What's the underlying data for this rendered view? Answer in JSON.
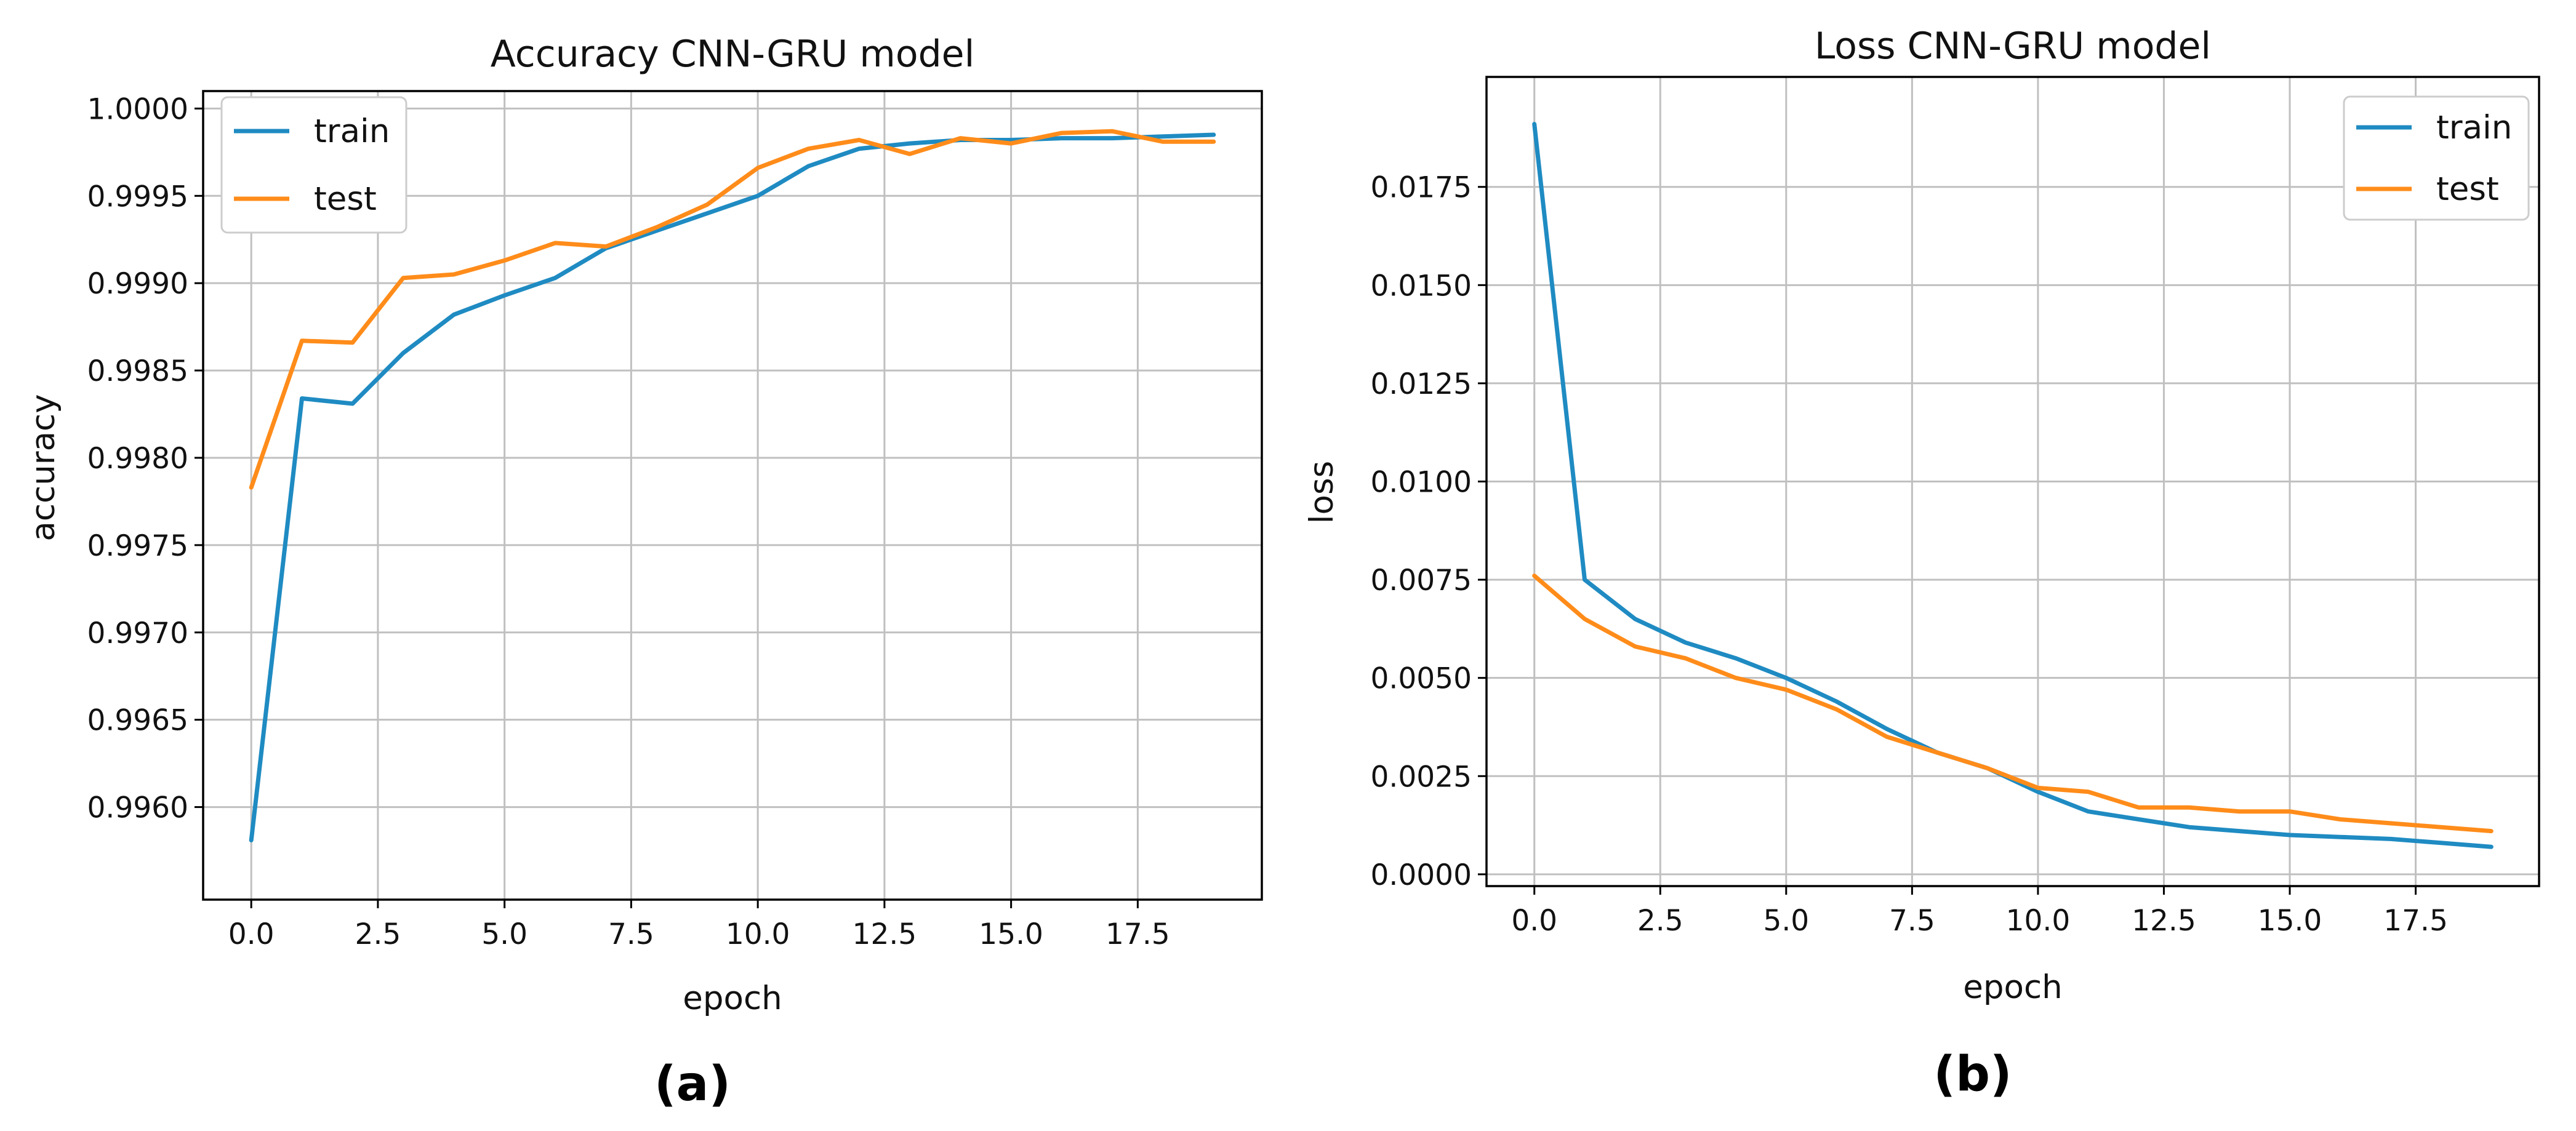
{
  "chart_data": [
    {
      "type": "line",
      "title": "Accuracy CNN-GRU model",
      "xlabel": "epoch",
      "ylabel": "accuracy",
      "panel_label": "(a)",
      "grid": true,
      "legend_position": "top-left",
      "xlim": [
        -0.95,
        19.95
      ],
      "ylim": [
        0.99547,
        1.0001
      ],
      "xticks": [
        0,
        2.5,
        5,
        7.5,
        10,
        12.5,
        15,
        17.5
      ],
      "xtick_labels": [
        "0.0",
        "2.5",
        "5.0",
        "7.5",
        "10.0",
        "12.5",
        "15.0",
        "17.5"
      ],
      "yticks": [
        0.996,
        0.9965,
        0.997,
        0.9975,
        0.998,
        0.9985,
        0.999,
        0.9995,
        1.0
      ],
      "ytick_labels": [
        "0.9960",
        "0.9965",
        "0.9970",
        "0.9975",
        "0.9980",
        "0.9985",
        "0.9990",
        "0.9995",
        "1.0000"
      ],
      "x": [
        0,
        1,
        2,
        3,
        4,
        5,
        6,
        7,
        8,
        9,
        10,
        11,
        12,
        13,
        14,
        15,
        16,
        17,
        18,
        19
      ],
      "series": [
        {
          "name": "train",
          "color": "#1f8bc2",
          "values": [
            0.99581,
            0.99834,
            0.99831,
            0.9986,
            0.99882,
            0.99893,
            0.99903,
            0.9992,
            0.9993,
            0.9994,
            0.9995,
            0.99967,
            0.99977,
            0.9998,
            0.99982,
            0.99982,
            0.99983,
            0.99983,
            0.99984,
            0.99985
          ]
        },
        {
          "name": "test",
          "color": "#ff8c1a",
          "values": [
            0.99783,
            0.99867,
            0.99866,
            0.99903,
            0.99905,
            0.99913,
            0.99923,
            0.99921,
            0.99932,
            0.99945,
            0.99966,
            0.99977,
            0.99982,
            0.99974,
            0.99983,
            0.9998,
            0.99986,
            0.99987,
            0.99981,
            0.99981
          ]
        }
      ]
    },
    {
      "type": "line",
      "title": "Loss CNN-GRU model",
      "xlabel": "epoch",
      "ylabel": "loss",
      "panel_label": "(b)",
      "grid": true,
      "legend_position": "top-right",
      "xlim": [
        -0.95,
        19.95
      ],
      "ylim": [
        -0.0003,
        0.0203
      ],
      "xticks": [
        0,
        2.5,
        5,
        7.5,
        10,
        12.5,
        15,
        17.5
      ],
      "xtick_labels": [
        "0.0",
        "2.5",
        "5.0",
        "7.5",
        "10.0",
        "12.5",
        "15.0",
        "17.5"
      ],
      "yticks": [
        0,
        0.0025,
        0.005,
        0.0075,
        0.01,
        0.0125,
        0.015,
        0.0175
      ],
      "ytick_labels": [
        "0.0000",
        "0.0025",
        "0.0050",
        "0.0075",
        "0.0100",
        "0.0125",
        "0.0150",
        "0.0175"
      ],
      "x": [
        0,
        1,
        2,
        3,
        4,
        5,
        6,
        7,
        8,
        9,
        10,
        11,
        12,
        13,
        14,
        15,
        16,
        17,
        18,
        19
      ],
      "series": [
        {
          "name": "train",
          "color": "#1f8bc2",
          "values": [
            0.0191,
            0.0075,
            0.0065,
            0.0059,
            0.0055,
            0.005,
            0.0044,
            0.0037,
            0.0031,
            0.0027,
            0.0021,
            0.0016,
            0.0014,
            0.0012,
            0.0011,
            0.001,
            0.00095,
            0.0009,
            0.0008,
            0.0007
          ]
        },
        {
          "name": "test",
          "color": "#ff8c1a",
          "values": [
            0.0076,
            0.0065,
            0.0058,
            0.0055,
            0.005,
            0.0047,
            0.0042,
            0.0035,
            0.0031,
            0.0027,
            0.0022,
            0.0021,
            0.0017,
            0.0017,
            0.0016,
            0.0016,
            0.0014,
            0.0013,
            0.0012,
            0.0011
          ]
        }
      ]
    }
  ]
}
